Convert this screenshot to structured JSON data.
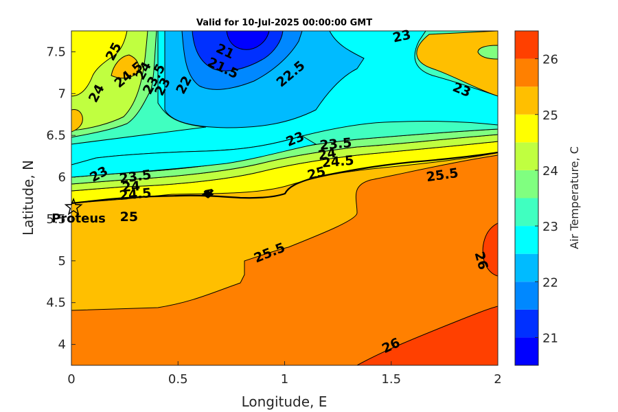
{
  "chart_data": {
    "type": "contour",
    "title": "Valid for 10-Jul-2025 00:00:00 GMT",
    "xlabel": "Longitude, E",
    "ylabel": "Latitude, N",
    "xlim": [
      0,
      2
    ],
    "ylim": [
      3.75,
      7.75
    ],
    "xticks": [
      "0",
      "0.5",
      "1",
      "1.5",
      "2"
    ],
    "yticks": [
      "4",
      "4.5",
      "5",
      "5.5",
      "6",
      "6.5",
      "7",
      "7.5"
    ],
    "colorbar": {
      "label": "Air Temperature, C",
      "range": [
        20.5,
        26.5
      ],
      "ticks": [
        "21",
        "22",
        "23",
        "24",
        "25",
        "26"
      ],
      "levels": [
        {
          "from": 20.5,
          "to": 21.0,
          "color": "#0000ff"
        },
        {
          "from": 21.0,
          "to": 21.5,
          "color": "#0030ff"
        },
        {
          "from": 21.5,
          "to": 22.0,
          "color": "#0088ff"
        },
        {
          "from": 22.0,
          "to": 22.5,
          "color": "#00bbff"
        },
        {
          "from": 22.5,
          "to": 23.0,
          "color": "#00ffff"
        },
        {
          "from": 23.0,
          "to": 23.5,
          "color": "#40ffc0"
        },
        {
          "from": 23.5,
          "to": 24.0,
          "color": "#80ff80"
        },
        {
          "from": 24.0,
          "to": 24.5,
          "color": "#c0ff40"
        },
        {
          "from": 24.5,
          "to": 25.0,
          "color": "#ffff00"
        },
        {
          "from": 25.0,
          "to": 25.5,
          "color": "#ffbf00"
        },
        {
          "from": 25.5,
          "to": 26.0,
          "color": "#ff8000"
        },
        {
          "from": 26.0,
          "to": 26.5,
          "color": "#ff4000"
        },
        {
          "from": 26.5,
          "to": 27.0,
          "color": "#ff0000"
        }
      ]
    },
    "contour_labels": [
      {
        "text": "25",
        "x": 0.2,
        "y": 7.5,
        "rot": -62
      },
      {
        "text": "24.5",
        "x": 0.27,
        "y": 7.22,
        "rot": -40
      },
      {
        "text": "24",
        "x": 0.34,
        "y": 7.27,
        "rot": -62
      },
      {
        "text": "23.5",
        "x": 0.39,
        "y": 7.17,
        "rot": -62
      },
      {
        "text": "24",
        "x": 0.12,
        "y": 7.0,
        "rot": -62
      },
      {
        "text": "23",
        "x": 0.43,
        "y": 7.08,
        "rot": -62
      },
      {
        "text": "22",
        "x": 0.53,
        "y": 7.1,
        "rot": -62
      },
      {
        "text": "21",
        "x": 0.72,
        "y": 7.5,
        "rot": 25
      },
      {
        "text": "21.5",
        "x": 0.71,
        "y": 7.3,
        "rot": 25
      },
      {
        "text": "22.5",
        "x": 1.03,
        "y": 7.23,
        "rot": -40
      },
      {
        "text": "23",
        "x": 1.55,
        "y": 7.68,
        "rot": -12
      },
      {
        "text": "23",
        "x": 1.83,
        "y": 7.04,
        "rot": 22
      },
      {
        "text": "23",
        "x": 1.05,
        "y": 6.45,
        "rot": -22
      },
      {
        "text": "23.5",
        "x": 1.24,
        "y": 6.39,
        "rot": -5
      },
      {
        "text": "24",
        "x": 1.2,
        "y": 6.27,
        "rot": -10
      },
      {
        "text": "24.5",
        "x": 1.25,
        "y": 6.18,
        "rot": -5
      },
      {
        "text": "25",
        "x": 1.15,
        "y": 6.04,
        "rot": -15
      },
      {
        "text": "25.5",
        "x": 1.74,
        "y": 6.02,
        "rot": -8
      },
      {
        "text": "23",
        "x": 0.13,
        "y": 6.03,
        "rot": -28
      },
      {
        "text": "23.5",
        "x": 0.3,
        "y": 6.0,
        "rot": -8
      },
      {
        "text": "24",
        "x": 0.28,
        "y": 5.88,
        "rot": -5
      },
      {
        "text": "24.5",
        "x": 0.3,
        "y": 5.79,
        "rot": -5
      },
      {
        "text": "4",
        "x": 0.64,
        "y": 5.81,
        "rot": 45
      },
      {
        "text": "25",
        "x": 0.27,
        "y": 5.52,
        "rot": 0
      },
      {
        "text": "25.5",
        "x": 0.93,
        "y": 5.09,
        "rot": -22
      },
      {
        "text": "26",
        "x": 1.92,
        "y": 5.0,
        "rot": 75
      },
      {
        "text": "26",
        "x": 1.5,
        "y": 3.98,
        "rot": -25
      }
    ],
    "site": {
      "name": "Proteus",
      "x": 0.01,
      "y": 5.64
    }
  }
}
